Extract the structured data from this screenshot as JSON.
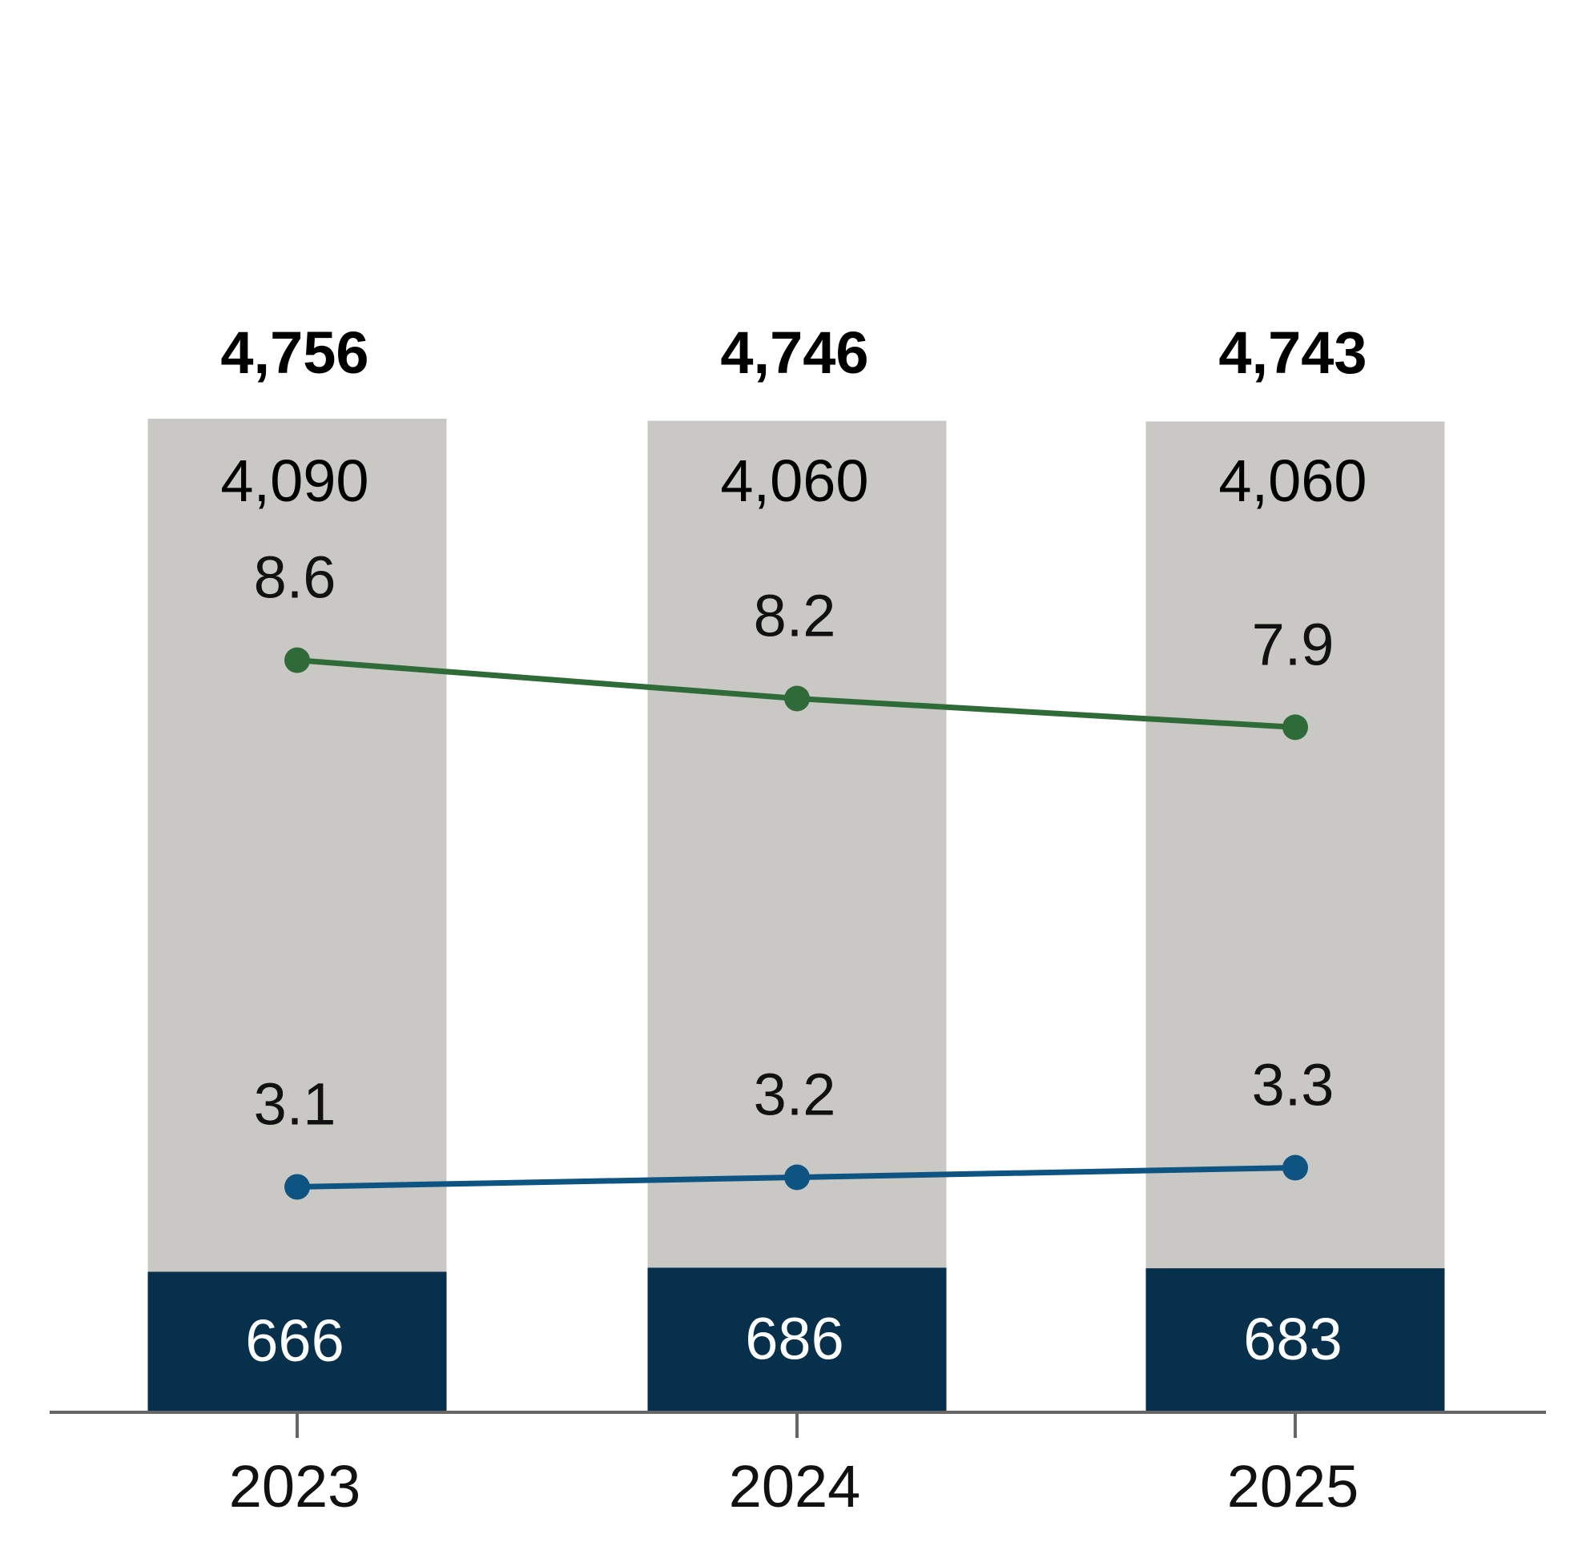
{
  "chart_data": {
    "type": "bar",
    "stacked": true,
    "title": "",
    "xlabel": "",
    "ylabel": "",
    "categories": [
      "2023",
      "2024",
      "2025"
    ],
    "series": [
      {
        "values": [
          666,
          686,
          683
        ],
        "color": "#06304b",
        "label_color": "#ffffff"
      },
      {
        "values": [
          4090,
          4060,
          4060
        ],
        "color": "#cac8c4",
        "label_color": "#000000"
      }
    ],
    "totals": [
      "4,756",
      "4,746",
      "4,743"
    ],
    "bar_labels_bottom": [
      "666",
      "686",
      "683"
    ],
    "bar_labels_top": [
      "4,090",
      "4,060",
      "4,060"
    ],
    "lines": [
      {
        "values": [
          8.6,
          8.2,
          7.9
        ],
        "labels": [
          "8.6",
          "8.2",
          "7.9"
        ],
        "color": "#2f6b38"
      },
      {
        "values": [
          3.1,
          3.2,
          3.3
        ],
        "labels": [
          "3.1",
          "3.2",
          "3.3"
        ],
        "color": "#0d5482"
      }
    ],
    "grid": false,
    "legend": "none"
  }
}
